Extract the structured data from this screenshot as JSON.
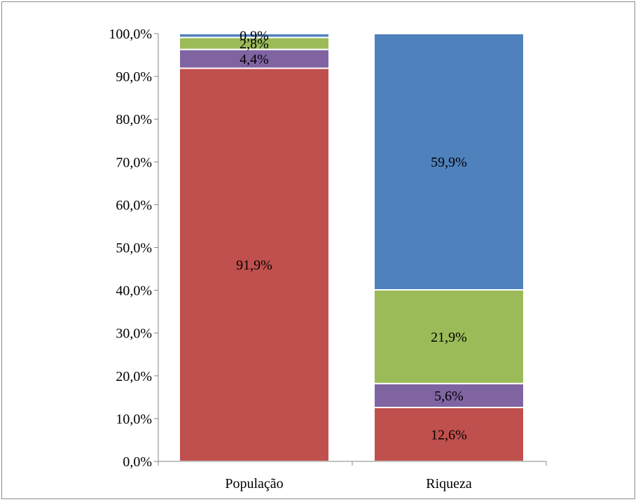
{
  "chart_data": {
    "type": "bar",
    "stacked": true,
    "categories": [
      "População",
      "Riqueza"
    ],
    "series": [
      {
        "color": "#C0504D",
        "values": [
          91.9,
          12.6
        ],
        "labels": [
          "91,9%",
          "12,6%"
        ]
      },
      {
        "color": "#8064A2",
        "values": [
          4.4,
          5.6
        ],
        "labels": [
          "4,4%",
          "5,6%"
        ]
      },
      {
        "color": "#9BBB59",
        "values": [
          2.8,
          21.9
        ],
        "labels": [
          "2,8%",
          "21,9%"
        ]
      },
      {
        "color": "#4F81BD",
        "values": [
          0.9,
          59.9
        ],
        "labels": [
          "0,9%",
          "59,9%"
        ]
      }
    ],
    "ylim": [
      0,
      100
    ],
    "yticks": [
      0,
      10,
      20,
      30,
      40,
      50,
      60,
      70,
      80,
      90,
      100
    ],
    "ytick_labels": [
      "0,0%",
      "10,0%",
      "20,0%",
      "30,0%",
      "40,0%",
      "50,0%",
      "60,0%",
      "70,0%",
      "80,0%",
      "90,0%",
      "100,0%"
    ],
    "grid": false,
    "legend": "none",
    "title": "",
    "xlabel": "",
    "ylabel": ""
  }
}
